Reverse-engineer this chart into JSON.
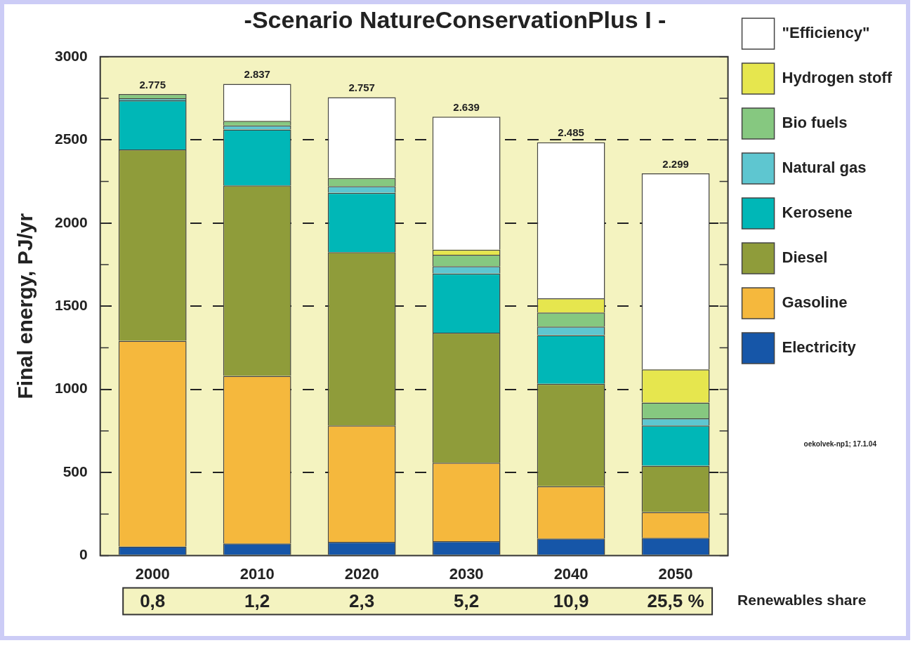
{
  "chart_data": {
    "type": "bar",
    "title": "-Scenario NatureConservationPlus I -",
    "ylabel": "Final energy, PJ/yr",
    "categories": [
      "2000",
      "2010",
      "2020",
      "2030",
      "2040",
      "2050"
    ],
    "stacked": true,
    "series": [
      {
        "name": "Electricity",
        "color": "#1656a8",
        "values": [
          55,
          73,
          83,
          87,
          103,
          107
        ]
      },
      {
        "name": "Gasoline",
        "color": "#f5b83d",
        "values": [
          1237,
          1008,
          699,
          472,
          314,
          155
        ]
      },
      {
        "name": "Diesel",
        "color": "#8f9c3a",
        "values": [
          1150,
          1145,
          1043,
          781,
          616,
          279
        ]
      },
      {
        "name": "Kerosene",
        "color": "#00b7b7",
        "values": [
          296,
          336,
          356,
          356,
          293,
          241
        ]
      },
      {
        "name": "Natural gas",
        "color": "#5ec6d0",
        "values": [
          12,
          25,
          41,
          44,
          51,
          44
        ]
      },
      {
        "name": "Bio fuels",
        "color": "#86c880",
        "values": [
          25,
          27,
          48,
          69,
          85,
          94
        ]
      },
      {
        "name": "Hydrogen stoff",
        "color": "#e6e64e",
        "values": [
          0,
          0,
          0,
          31,
          85,
          200
        ]
      },
      {
        "name": "\"Efficiency\"",
        "color": "#ffffff",
        "values": [
          0,
          223,
          487,
          799,
          938,
          1179
        ]
      }
    ],
    "totals": [
      "2.775",
      "2.837",
      "2.757",
      "2.639",
      "2.485",
      "2.299"
    ],
    "ylim": [
      0,
      3000
    ],
    "yticks": [
      0,
      {
        "value": 250,
        "label": null
      },
      500,
      {
        "value": 750,
        "label": null
      },
      1000,
      {
        "value": 1250,
        "label": null
      },
      1500,
      {
        "value": 1750,
        "label": null
      },
      2000,
      {
        "value": 2250,
        "label": null
      },
      2500,
      {
        "value": 2750,
        "label": null
      },
      3000
    ],
    "grid": "y",
    "legend": "right",
    "annotations": [
      "0,8",
      "1,2",
      "2,3",
      "5,2",
      "10,9",
      "25,5 %",
      "Renewables share",
      "oekolvek-np1; 17.1.04"
    ]
  }
}
